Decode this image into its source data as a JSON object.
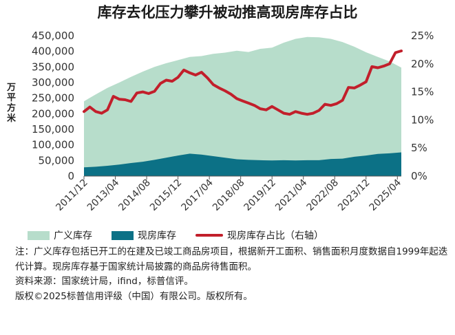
{
  "title": "库存去化压力攀升被动推高现房库存占比",
  "y_axis_title": "万平方米",
  "legend": [
    {
      "label": "广义库存",
      "color": "#b7ddcb",
      "kind": "area"
    },
    {
      "label": "现房库存",
      "color": "#0c7186",
      "kind": "area"
    },
    {
      "label": "现房库存占比（右轴）",
      "color": "#c21f2b",
      "kind": "line"
    }
  ],
  "notes": {
    "note": "注：广义库存包括已开工的在建及已竣工商品房项目，根据新开工面积、销售面积月度数据自1999年起迭代计算。现房库存基于国家统计局披露的商品房待售面积。",
    "source": "资料来源：国家统计局，ifind，标普信评。",
    "copyright": "版权©2025标普信用评级（中国）有限公司。版权所有。"
  },
  "chart_data": {
    "type": "area",
    "left_axis": {
      "min": 0,
      "max": 450000,
      "ticks": [
        "0",
        "50,000",
        "100,000",
        "150,000",
        "200,000",
        "250,000",
        "300,000",
        "350,000",
        "400,000",
        "450,000"
      ]
    },
    "right_axis": {
      "min": 0,
      "max": 25,
      "ticks": [
        "0%",
        "5%",
        "10%",
        "15%",
        "20%",
        "25%"
      ]
    },
    "x_tick_labels": [
      "2011/12",
      "2013/04",
      "2014/08",
      "2015/12",
      "2017/04",
      "2018/08",
      "2019/12",
      "2021/04",
      "2022/08",
      "2023/12",
      "2025/04"
    ],
    "x_range": [
      "2011/12",
      "2025/06"
    ],
    "grid": false,
    "legend_position": "bottom",
    "series": [
      {
        "name": "广义库存",
        "color": "#b7ddcb",
        "points": [
          [
            "2011/12",
            240000
          ],
          [
            "2012/06",
            262000
          ],
          [
            "2012/12",
            283000
          ],
          [
            "2013/06",
            300000
          ],
          [
            "2013/12",
            318000
          ],
          [
            "2014/06",
            335000
          ],
          [
            "2014/12",
            350000
          ],
          [
            "2015/06",
            362000
          ],
          [
            "2015/12",
            372000
          ],
          [
            "2016/06",
            382000
          ],
          [
            "2016/12",
            385000
          ],
          [
            "2017/06",
            392000
          ],
          [
            "2017/12",
            396000
          ],
          [
            "2018/06",
            402000
          ],
          [
            "2018/12",
            398000
          ],
          [
            "2019/06",
            408000
          ],
          [
            "2019/12",
            412000
          ],
          [
            "2020/06",
            428000
          ],
          [
            "2020/12",
            440000
          ],
          [
            "2021/06",
            446000
          ],
          [
            "2021/12",
            445000
          ],
          [
            "2022/06",
            440000
          ],
          [
            "2022/12",
            430000
          ],
          [
            "2023/06",
            415000
          ],
          [
            "2023/12",
            397000
          ],
          [
            "2024/06",
            382000
          ],
          [
            "2024/12",
            368000
          ],
          [
            "2025/06",
            348000
          ]
        ]
      },
      {
        "name": "现房库存",
        "color": "#0c7186",
        "points": [
          [
            "2011/12",
            28000
          ],
          [
            "2012/06",
            30000
          ],
          [
            "2012/12",
            33000
          ],
          [
            "2013/06",
            37000
          ],
          [
            "2013/12",
            42000
          ],
          [
            "2014/06",
            46000
          ],
          [
            "2014/12",
            52000
          ],
          [
            "2015/06",
            59000
          ],
          [
            "2015/12",
            66000
          ],
          [
            "2016/06",
            72000
          ],
          [
            "2016/12",
            69000
          ],
          [
            "2017/06",
            64000
          ],
          [
            "2017/12",
            59000
          ],
          [
            "2018/06",
            54000
          ],
          [
            "2018/12",
            52000
          ],
          [
            "2019/06",
            51000
          ],
          [
            "2019/12",
            50000
          ],
          [
            "2020/06",
            51000
          ],
          [
            "2020/12",
            50000
          ],
          [
            "2021/06",
            51000
          ],
          [
            "2021/12",
            51000
          ],
          [
            "2022/06",
            55000
          ],
          [
            "2022/12",
            56000
          ],
          [
            "2023/06",
            62000
          ],
          [
            "2023/12",
            66000
          ],
          [
            "2024/06",
            71000
          ],
          [
            "2024/12",
            73000
          ],
          [
            "2025/06",
            76000
          ]
        ]
      },
      {
        "name": "现房库存占比（右轴）",
        "color": "#c21f2b",
        "axis": "right",
        "points": [
          [
            "2011/12",
            11.5
          ],
          [
            "2012/03",
            12.3
          ],
          [
            "2012/06",
            11.5
          ],
          [
            "2012/09",
            11.2
          ],
          [
            "2012/12",
            11.8
          ],
          [
            "2013/03",
            14.2
          ],
          [
            "2013/06",
            13.7
          ],
          [
            "2013/09",
            13.6
          ],
          [
            "2013/12",
            13.3
          ],
          [
            "2014/03",
            14.8
          ],
          [
            "2014/06",
            15.0
          ],
          [
            "2014/09",
            14.7
          ],
          [
            "2014/12",
            15.1
          ],
          [
            "2015/03",
            16.5
          ],
          [
            "2015/06",
            17.1
          ],
          [
            "2015/09",
            16.9
          ],
          [
            "2015/12",
            17.6
          ],
          [
            "2016/03",
            18.9
          ],
          [
            "2016/06",
            18.4
          ],
          [
            "2016/09",
            18.0
          ],
          [
            "2016/12",
            18.5
          ],
          [
            "2017/03",
            17.5
          ],
          [
            "2017/06",
            16.3
          ],
          [
            "2017/09",
            15.7
          ],
          [
            "2017/12",
            15.2
          ],
          [
            "2018/03",
            14.6
          ],
          [
            "2018/06",
            13.8
          ],
          [
            "2018/09",
            13.4
          ],
          [
            "2018/12",
            13.0
          ],
          [
            "2019/03",
            12.6
          ],
          [
            "2019/06",
            12.0
          ],
          [
            "2019/09",
            11.8
          ],
          [
            "2019/12",
            12.4
          ],
          [
            "2020/03",
            11.8
          ],
          [
            "2020/06",
            11.2
          ],
          [
            "2020/09",
            11.0
          ],
          [
            "2020/12",
            11.5
          ],
          [
            "2021/03",
            11.2
          ],
          [
            "2021/06",
            11.0
          ],
          [
            "2021/09",
            11.2
          ],
          [
            "2021/12",
            11.7
          ],
          [
            "2022/03",
            12.8
          ],
          [
            "2022/06",
            12.6
          ],
          [
            "2022/09",
            12.9
          ],
          [
            "2022/12",
            13.5
          ],
          [
            "2023/03",
            15.8
          ],
          [
            "2023/06",
            15.7
          ],
          [
            "2023/09",
            16.2
          ],
          [
            "2023/12",
            16.8
          ],
          [
            "2024/03",
            19.5
          ],
          [
            "2024/06",
            19.3
          ],
          [
            "2024/09",
            19.6
          ],
          [
            "2024/12",
            20.0
          ],
          [
            "2025/03",
            22.0
          ],
          [
            "2025/06",
            22.3
          ]
        ]
      }
    ]
  }
}
